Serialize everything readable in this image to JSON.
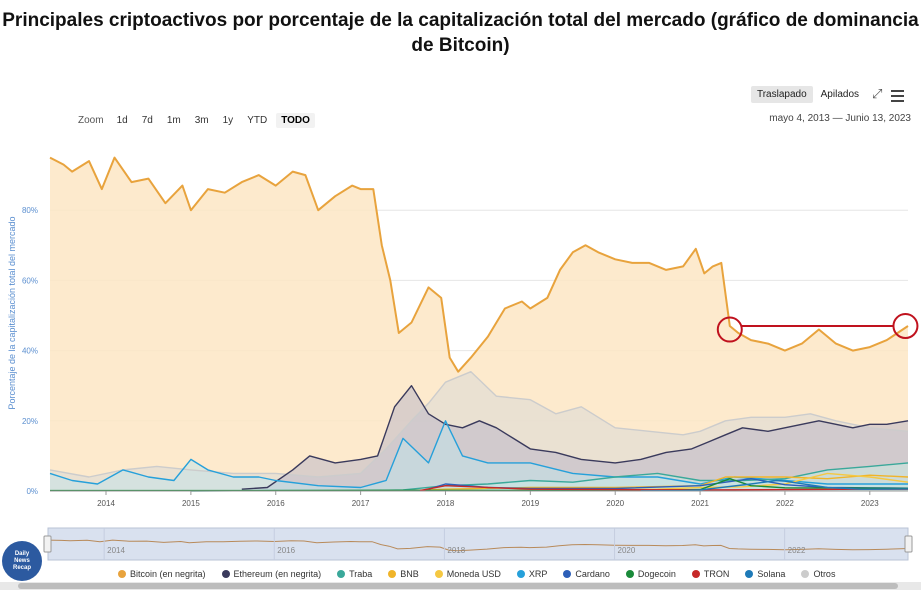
{
  "title": "Principales criptoactivos por porcentaje de la capitalización total del mercado (gráfico de dominancia de Bitcoin)",
  "toolbar": {
    "zoom_label": "Zoom",
    "zoom_buttons": [
      "1d",
      "7d",
      "1m",
      "3m",
      "1y",
      "YTD",
      "TODO"
    ],
    "active_zoom": "TODO",
    "range_text": "mayo 4, 2013 — Junio 13, 2023",
    "views": [
      "Traslapado",
      "Apilados"
    ],
    "active_view": "Traslapado"
  },
  "logo_text": "Daily\nNews\nRecap",
  "colors": {
    "bitcoin": "#e8a33d",
    "bitcoin_fill": "#fde6c4",
    "ethereum": "#3a3a5c",
    "tether": "#3aa89a",
    "bnb": "#f0b429",
    "usdc": "#f5c842",
    "xrp": "#26a0da",
    "cardano": "#2d5fb8",
    "dogecoin": "#1a8a3a",
    "tron": "#c62828",
    "solana": "#1e7ab8",
    "otros": "#cccccc",
    "annotation": "#c0121e",
    "navigator_fill": "#d9e1ef"
  },
  "chart_data": {
    "type": "area",
    "title": "Principales criptoactivos por porcentaje de la capitalización total del mercado (gráfico de dominancia de Bitcoin)",
    "ylabel": "Porcentaje de la capitalización total del mercado",
    "ylim": [
      0,
      100
    ],
    "yticks": [
      "0%",
      "20%",
      "40%",
      "60%",
      "80%"
    ],
    "xlim": [
      2013.34,
      2023.45
    ],
    "xticks": [
      "2014",
      "2015",
      "2016",
      "2017",
      "2018",
      "2019",
      "2020",
      "2021",
      "2022",
      "2023"
    ],
    "navigator_ticks": [
      "2014",
      "2016",
      "2018",
      "2020",
      "2022"
    ],
    "legend": [
      {
        "key": "bitcoin",
        "label": "Bitcoin (en negrita)"
      },
      {
        "key": "ethereum",
        "label": "Ethereum (en negrita)"
      },
      {
        "key": "tether",
        "label": "Traba"
      },
      {
        "key": "bnb",
        "label": "BNB"
      },
      {
        "key": "usdc",
        "label": "Moneda USD"
      },
      {
        "key": "xrp",
        "label": "XRP"
      },
      {
        "key": "cardano",
        "label": "Cardano"
      },
      {
        "key": "dogecoin",
        "label": "Dogecoin"
      },
      {
        "key": "tron",
        "label": "TRON"
      },
      {
        "key": "solana",
        "label": "Solana"
      },
      {
        "key": "otros",
        "label": "Otros"
      }
    ],
    "series": [
      {
        "key": "bitcoin",
        "name": "Bitcoin (en negrita)",
        "x": [
          2013.34,
          2013.5,
          2013.6,
          2013.8,
          2013.95,
          2014.1,
          2014.3,
          2014.5,
          2014.7,
          2014.9,
          2015.0,
          2015.2,
          2015.4,
          2015.6,
          2015.8,
          2016.0,
          2016.2,
          2016.35,
          2016.5,
          2016.7,
          2016.9,
          2017.0,
          2017.15,
          2017.25,
          2017.35,
          2017.45,
          2017.6,
          2017.8,
          2017.95,
          2018.05,
          2018.15,
          2018.3,
          2018.5,
          2018.7,
          2018.9,
          2019.0,
          2019.2,
          2019.35,
          2019.5,
          2019.65,
          2019.8,
          2020.0,
          2020.2,
          2020.4,
          2020.6,
          2020.8,
          2020.95,
          2021.05,
          2021.15,
          2021.25,
          2021.35,
          2021.45,
          2021.6,
          2021.8,
          2022.0,
          2022.2,
          2022.4,
          2022.6,
          2022.8,
          2023.0,
          2023.2,
          2023.45
        ],
        "values": [
          95,
          93,
          91,
          94,
          86,
          95,
          88,
          89,
          82,
          87,
          80,
          86,
          85,
          88,
          90,
          87,
          91,
          90,
          80,
          84,
          87,
          86,
          86,
          70,
          60,
          45,
          48,
          58,
          55,
          38,
          34,
          38,
          44,
          52,
          54,
          52,
          55,
          63,
          68,
          70,
          68,
          66,
          65,
          65,
          63,
          64,
          69,
          62,
          64,
          65,
          47,
          45,
          43,
          42,
          40,
          42,
          46,
          42,
          40,
          41,
          43,
          47
        ]
      },
      {
        "key": "ethereum",
        "name": "Ethereum (en negrita)",
        "x": [
          2015.6,
          2015.9,
          2016.2,
          2016.4,
          2016.7,
          2017.0,
          2017.2,
          2017.4,
          2017.6,
          2017.8,
          2018.0,
          2018.2,
          2018.4,
          2018.6,
          2018.8,
          2019.0,
          2019.3,
          2019.6,
          2020.0,
          2020.3,
          2020.6,
          2020.9,
          2021.1,
          2021.3,
          2021.5,
          2021.8,
          2022.0,
          2022.2,
          2022.4,
          2022.6,
          2022.8,
          2023.0,
          2023.2,
          2023.45
        ],
        "values": [
          0.5,
          1,
          6,
          10,
          8,
          9,
          10,
          24,
          30,
          22,
          19,
          18,
          20,
          18,
          15,
          12,
          11,
          9,
          8,
          9,
          11,
          12,
          14,
          16,
          18,
          17,
          18,
          19,
          20,
          19,
          18,
          19,
          19,
          20
        ]
      },
      {
        "key": "tether",
        "name": "Traba",
        "x": [
          2015.0,
          2016.0,
          2017.0,
          2017.5,
          2018.0,
          2018.5,
          2019.0,
          2019.5,
          2020.0,
          2020.5,
          2021.0,
          2021.5,
          2022.0,
          2022.5,
          2023.0,
          2023.45
        ],
        "values": [
          0,
          0.1,
          0.1,
          0.3,
          1.5,
          2,
          3,
          2.5,
          4,
          5,
          3,
          3,
          3.5,
          6,
          7,
          8
        ]
      },
      {
        "key": "bnb",
        "name": "BNB",
        "x": [
          2017.6,
          2018.0,
          2019.0,
          2020.0,
          2021.0,
          2021.3,
          2021.6,
          2022.0,
          2022.5,
          2023.0,
          2023.45
        ],
        "values": [
          0.1,
          0.5,
          1,
          1,
          1.5,
          4,
          4,
          4,
          3.5,
          4.5,
          4
        ]
      },
      {
        "key": "usdc",
        "name": "Moneda USD",
        "x": [
          2018.8,
          2019.5,
          2020.5,
          2021.0,
          2021.5,
          2022.0,
          2022.5,
          2023.0,
          2023.45
        ],
        "values": [
          0.1,
          0.2,
          0.5,
          1,
          1.2,
          2,
          5,
          4,
          2.5
        ]
      },
      {
        "key": "xrp",
        "name": "XRP",
        "x": [
          2013.34,
          2013.6,
          2013.9,
          2014.2,
          2014.5,
          2014.8,
          2015.0,
          2015.2,
          2015.5,
          2015.8,
          2016.0,
          2016.5,
          2017.0,
          2017.3,
          2017.5,
          2017.8,
          2018.0,
          2018.2,
          2018.5,
          2019.0,
          2019.5,
          2020.0,
          2020.5,
          2021.0,
          2021.4,
          2022.0,
          2022.5,
          2023.0,
          2023.45
        ],
        "values": [
          5,
          3,
          2,
          6,
          4,
          3,
          9,
          6,
          4,
          4,
          3,
          1.5,
          1,
          3,
          15,
          8,
          20,
          10,
          8,
          8,
          5,
          4,
          4,
          2,
          4,
          3,
          2,
          2,
          2
        ]
      },
      {
        "key": "cardano",
        "name": "Cardano",
        "x": [
          2017.8,
          2018.0,
          2018.5,
          2019.0,
          2020.0,
          2021.0,
          2021.6,
          2022.0,
          2022.5,
          2023.0,
          2023.45
        ],
        "values": [
          0.5,
          2,
          1,
          0.7,
          0.7,
          1.5,
          3.5,
          1.8,
          1,
          0.9,
          0.8
        ]
      },
      {
        "key": "dogecoin",
        "name": "Dogecoin",
        "x": [
          2013.34,
          2015.0,
          2018.0,
          2020.0,
          2021.0,
          2021.35,
          2021.6,
          2022.0,
          2023.0,
          2023.45
        ],
        "values": [
          0.1,
          0.1,
          0.2,
          0.1,
          0.4,
          3.5,
          1.5,
          0.9,
          0.8,
          0.7
        ]
      },
      {
        "key": "tron",
        "name": "TRON",
        "x": [
          2017.7,
          2018.0,
          2019.0,
          2020.0,
          2021.0,
          2022.0,
          2023.0,
          2023.45
        ],
        "values": [
          0.1,
          1.5,
          0.5,
          0.4,
          0.3,
          0.4,
          0.5,
          0.5
        ]
      },
      {
        "key": "solana",
        "name": "Solana",
        "x": [
          2020.3,
          2020.8,
          2021.0,
          2021.6,
          2021.9,
          2022.0,
          2022.5,
          2022.9,
          2023.0,
          2023.45
        ],
        "values": [
          0.05,
          0.1,
          0.3,
          2,
          3,
          2.8,
          1,
          0.5,
          0.5,
          0.6
        ]
      },
      {
        "key": "otros",
        "name": "Otros",
        "x": [
          2013.34,
          2013.8,
          2014.2,
          2014.6,
          2015.0,
          2015.5,
          2016.0,
          2016.5,
          2017.0,
          2017.3,
          2017.6,
          2017.8,
          2018.0,
          2018.3,
          2018.6,
          2019.0,
          2019.3,
          2019.6,
          2020.0,
          2020.4,
          2020.8,
          2021.0,
          2021.3,
          2021.6,
          2022.0,
          2022.3,
          2022.6,
          2023.0,
          2023.45
        ],
        "values": [
          6,
          4,
          6,
          7,
          6,
          5,
          5,
          4,
          5,
          12,
          20,
          25,
          31,
          34,
          27,
          26,
          22,
          24,
          18,
          17,
          16,
          17,
          20,
          21,
          21,
          22,
          20,
          18,
          17
        ]
      }
    ],
    "annotations": [
      {
        "type": "circle",
        "x": 2021.35,
        "y": 46
      },
      {
        "type": "circle",
        "x": 2023.42,
        "y": 47
      },
      {
        "type": "line",
        "x1": 2021.35,
        "x2": 2023.42,
        "y": 47
      }
    ],
    "grid": true
  }
}
